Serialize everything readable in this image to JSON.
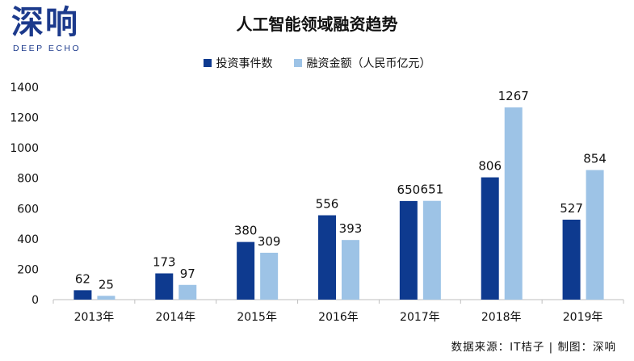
{
  "logo": {
    "cn": "深响",
    "en": "DEEP ECHO"
  },
  "source": "数据来源：IT桔子 | 制图：深响",
  "colors": {
    "series1": "#0e3a8f",
    "series2": "#9dc3e6",
    "axis": "#bfbfbf",
    "text": "#111111"
  },
  "chart_data": {
    "type": "bar",
    "title": "人工智能领域融资趋势",
    "categories": [
      "2013年",
      "2014年",
      "2015年",
      "2016年",
      "2017年",
      "2018年",
      "2019年"
    ],
    "series": [
      {
        "name": "投资事件数",
        "values": [
          62,
          173,
          380,
          556,
          650,
          806,
          527
        ]
      },
      {
        "name": "融资金额（人民币亿元）",
        "values": [
          25,
          97,
          309,
          393,
          651,
          1267,
          854
        ]
      }
    ],
    "ylim": [
      0,
      1400
    ],
    "yticks": [
      0,
      200,
      400,
      600,
      800,
      1000,
      1200,
      1400
    ],
    "grid": false,
    "legend": "top-center",
    "xlabel": "",
    "ylabel": ""
  }
}
